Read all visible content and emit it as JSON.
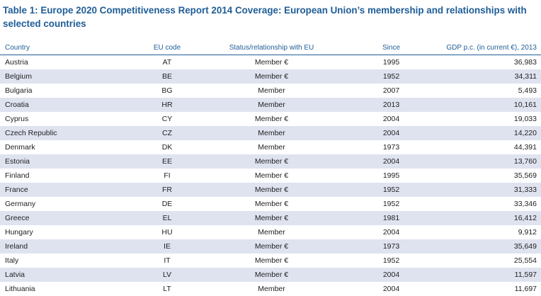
{
  "title": "Table 1: Europe 2020 Competitiveness Report 2014 Coverage: European Union’s membership and relationships with selected countries",
  "table": {
    "headers": {
      "country": "Country",
      "code": "EU code",
      "status": "Status/relationship with EU",
      "since": "Since",
      "gdp": "GDP p.c. (in current €), 2013"
    },
    "rows": [
      {
        "country": "Austria",
        "code": "AT",
        "status": "Member €",
        "since": "1995",
        "gdp": "36,983"
      },
      {
        "country": "Belgium",
        "code": "BE",
        "status": "Member €",
        "since": "1952",
        "gdp": "34,311"
      },
      {
        "country": "Bulgaria",
        "code": "BG",
        "status": "Member",
        "since": "2007",
        "gdp": "5,493"
      },
      {
        "country": "Croatia",
        "code": "HR",
        "status": "Member",
        "since": "2013",
        "gdp": "10,161"
      },
      {
        "country": "Cyprus",
        "code": "CY",
        "status": "Member €",
        "since": "2004",
        "gdp": "19,033"
      },
      {
        "country": "Czech Republic",
        "code": "CZ",
        "status": "Member",
        "since": "2004",
        "gdp": "14,220"
      },
      {
        "country": "Denmark",
        "code": "DK",
        "status": "Member",
        "since": "1973",
        "gdp": "44,391"
      },
      {
        "country": "Estonia",
        "code": "EE",
        "status": "Member €",
        "since": "2004",
        "gdp": "13,760"
      },
      {
        "country": "Finland",
        "code": "FI",
        "status": "Member €",
        "since": "1995",
        "gdp": "35,569"
      },
      {
        "country": "France",
        "code": "FR",
        "status": "Member €",
        "since": "1952",
        "gdp": "31,333"
      },
      {
        "country": "Germany",
        "code": "DE",
        "status": "Member €",
        "since": "1952",
        "gdp": "33,346"
      },
      {
        "country": "Greece",
        "code": "EL",
        "status": "Member €",
        "since": "1981",
        "gdp": "16,412"
      },
      {
        "country": "Hungary",
        "code": "HU",
        "status": "Member",
        "since": "2004",
        "gdp": "9,912"
      },
      {
        "country": "Ireland",
        "code": "IE",
        "status": "Member €",
        "since": "1973",
        "gdp": "35,649"
      },
      {
        "country": "Italy",
        "code": "IT",
        "status": "Member €",
        "since": "1952",
        "gdp": "25,554"
      },
      {
        "country": "Latvia",
        "code": "LV",
        "status": "Member €",
        "since": "2004",
        "gdp": "11,597"
      },
      {
        "country": "Lithuania",
        "code": "LT",
        "status": "Member",
        "since": "2004",
        "gdp": "11,697"
      }
    ]
  },
  "colors": {
    "title": "#1f5d96",
    "header_rule": "#1f5d96",
    "band": "#dfe3f0"
  }
}
